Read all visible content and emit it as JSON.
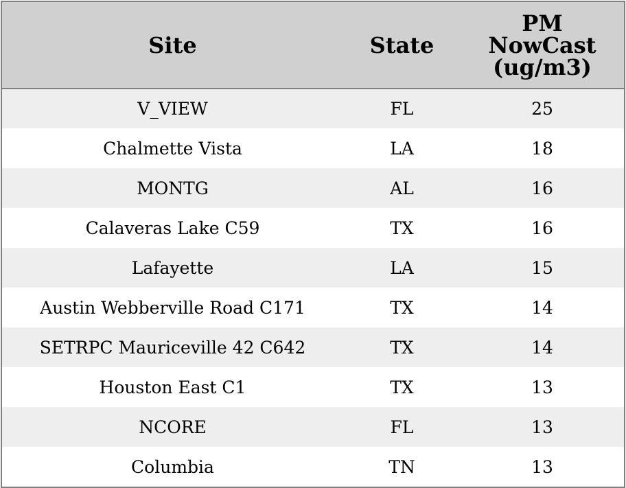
{
  "table": {
    "headers": {
      "site": "Site",
      "state": "State",
      "pm_line1": "PM",
      "pm_line2": "NowCast",
      "pm_line3": "(ug/m3)"
    },
    "rows": [
      {
        "site": "V_VIEW",
        "state": "FL",
        "pm": "25"
      },
      {
        "site": "Chalmette Vista",
        "state": "LA",
        "pm": "18"
      },
      {
        "site": "MONTG",
        "state": "AL",
        "pm": "16"
      },
      {
        "site": "Calaveras Lake C59",
        "state": "TX",
        "pm": "16"
      },
      {
        "site": "Lafayette",
        "state": "LA",
        "pm": "15"
      },
      {
        "site": "Austin Webberville Road C171",
        "state": "TX",
        "pm": "14"
      },
      {
        "site": "SETRPC Mauriceville 42 C642",
        "state": "TX",
        "pm": "14"
      },
      {
        "site": "Houston East C1",
        "state": "TX",
        "pm": "13"
      },
      {
        "site": "NCORE",
        "state": "FL",
        "pm": "13"
      },
      {
        "site": "Columbia",
        "state": "TN",
        "pm": "13"
      }
    ]
  },
  "colors": {
    "header_bg": "#d0d0d0",
    "row_shaded": "#eeeeee",
    "row_plain": "#ffffff",
    "border": "#808080"
  }
}
